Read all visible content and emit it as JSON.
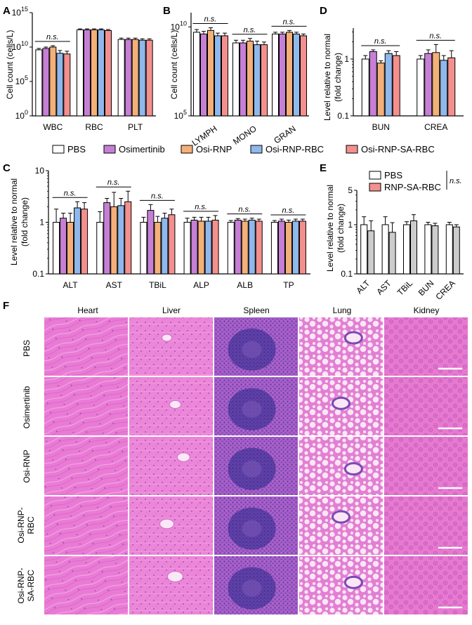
{
  "figure": {
    "panel_labels": [
      "A",
      "B",
      "C",
      "D",
      "E",
      "F"
    ],
    "legend_main": [
      "PBS",
      "Osimertinib",
      "Osi-RNP",
      "Osi-RNP-RBC",
      "Osi-RNP-SA-RBC"
    ],
    "legend_e": [
      "PBS",
      "RNP-SA-RBC"
    ],
    "colors": {
      "PBS": "#ffffff",
      "Osimertinib": "#c77fd6",
      "Osi-RNP": "#f4b079",
      "Osi-RNP-RBC": "#8fb8ec",
      "Osi-RNP-SA-RBC": "#f3908e"
    },
    "ns_label": "n.s."
  },
  "chart_data": [
    {
      "id": "A",
      "type": "bar",
      "scale": "log",
      "title": "",
      "xlabel": "",
      "ylabel": "Cell count (cells/L)",
      "yticks": [
        "10^0",
        "10^5",
        "10^10",
        "10^15"
      ],
      "ylim_exp": [
        0,
        15
      ],
      "categories": [
        "WBC",
        "RBC",
        "PLT"
      ],
      "series": [
        {
          "name": "PBS",
          "values_exp": [
            9.6,
            12.5,
            11.1
          ],
          "err": [
            0.2,
            0.15,
            0.2
          ]
        },
        {
          "name": "Osimertinib",
          "values_exp": [
            9.8,
            12.5,
            11.1
          ],
          "err": [
            0.2,
            0.15,
            0.2
          ]
        },
        {
          "name": "Osi-RNP",
          "values_exp": [
            10.0,
            12.5,
            11.1
          ],
          "err": [
            0.2,
            0.15,
            0.2
          ]
        },
        {
          "name": "Osi-RNP-RBC",
          "values_exp": [
            9.1,
            12.5,
            11.0
          ],
          "err": [
            0.4,
            0.15,
            0.2
          ]
        },
        {
          "name": "Osi-RNP-SA-RBC",
          "values_exp": [
            9.0,
            12.4,
            11.0
          ],
          "err": [
            0.4,
            0.15,
            0.2
          ]
        }
      ],
      "ns": [
        {
          "label": "n.s.",
          "from": 0,
          "to": 0
        }
      ]
    },
    {
      "id": "B",
      "type": "bar",
      "scale": "log",
      "title": "",
      "xlabel": "",
      "ylabel": "Cell count (cells/L)",
      "yticks": [
        "10^5",
        "10^10"
      ],
      "ylim_exp": [
        5,
        10.8
      ],
      "categories": [
        "LYMPH",
        "MONO",
        "GRAN"
      ],
      "series": [
        {
          "name": "PBS",
          "values_exp": [
            9.7,
            9.1,
            9.6
          ],
          "err": [
            0.15,
            0.15,
            0.1
          ]
        },
        {
          "name": "Osimertinib",
          "values_exp": [
            9.6,
            9.1,
            9.6
          ],
          "err": [
            0.15,
            0.15,
            0.1
          ]
        },
        {
          "name": "Osi-RNP",
          "values_exp": [
            9.8,
            9.2,
            9.7
          ],
          "err": [
            0.15,
            0.15,
            0.1
          ]
        },
        {
          "name": "Osi-RNP-RBC",
          "values_exp": [
            9.5,
            9.0,
            9.6
          ],
          "err": [
            0.15,
            0.2,
            0.1
          ]
        },
        {
          "name": "Osi-RNP-SA-RBC",
          "values_exp": [
            9.5,
            9.0,
            9.5
          ],
          "err": [
            0.15,
            0.15,
            0.1
          ]
        }
      ],
      "ns": [
        {
          "label": "n.s.",
          "from": 0,
          "to": 0
        },
        {
          "label": "n.s.",
          "from": 1,
          "to": 1
        },
        {
          "label": "n.s.",
          "from": 2,
          "to": 2
        }
      ]
    },
    {
      "id": "D",
      "type": "bar",
      "scale": "log",
      "title": "",
      "xlabel": "",
      "ylabel": "Level relative to normal (fold change)",
      "yticks": [
        "0.1",
        "1"
      ],
      "ylim": [
        0.1,
        3.5
      ],
      "categories": [
        "BUN",
        "CREA"
      ],
      "series": [
        {
          "name": "PBS",
          "values": [
            1.0,
            1.0
          ],
          "err": [
            0.15,
            0.15
          ]
        },
        {
          "name": "Osimertinib",
          "values": [
            1.35,
            1.25
          ],
          "err": [
            0.1,
            0.2
          ]
        },
        {
          "name": "Osi-RNP",
          "values": [
            0.85,
            1.3
          ],
          "err": [
            0.08,
            0.5
          ]
        },
        {
          "name": "Osi-RNP-RBC",
          "values": [
            1.25,
            0.95
          ],
          "err": [
            0.15,
            0.2
          ]
        },
        {
          "name": "Osi-RNP-SA-RBC",
          "values": [
            1.15,
            1.05
          ],
          "err": [
            0.2,
            0.35
          ]
        }
      ],
      "ns": [
        {
          "label": "n.s.",
          "from": 0,
          "to": 0
        },
        {
          "label": "n.s.",
          "from": 1,
          "to": 1
        }
      ]
    },
    {
      "id": "C",
      "type": "bar",
      "scale": "log",
      "title": "",
      "xlabel": "",
      "ylabel": "Level relative to normal (fold change)",
      "yticks": [
        "0.1",
        "1",
        "10"
      ],
      "ylim": [
        0.1,
        10
      ],
      "categories": [
        "ALT",
        "AST",
        "TBiL",
        "ALP",
        "ALB",
        "TP"
      ],
      "series": [
        {
          "name": "PBS",
          "values": [
            1.0,
            1.0,
            1.0,
            1.0,
            1.0,
            1.0
          ],
          "err": [
            0.8,
            0.6,
            0.25,
            0.2,
            0.08,
            0.08
          ]
        },
        {
          "name": "Osimertinib",
          "values": [
            1.2,
            2.4,
            1.7,
            1.1,
            1.1,
            1.05
          ],
          "err": [
            0.3,
            0.5,
            0.5,
            0.15,
            0.08,
            0.1
          ]
        },
        {
          "name": "Osi-RNP",
          "values": [
            1.0,
            2.0,
            1.0,
            1.05,
            1.05,
            1.0
          ],
          "err": [
            0.5,
            1.8,
            0.3,
            0.2,
            0.1,
            0.1
          ]
        },
        {
          "name": "Osi-RNP-RBC",
          "values": [
            1.9,
            2.1,
            1.2,
            1.05,
            1.1,
            1.05
          ],
          "err": [
            0.6,
            0.8,
            0.3,
            0.2,
            0.1,
            0.1
          ]
        },
        {
          "name": "Osi-RNP-SA-RBC",
          "values": [
            1.8,
            2.5,
            1.4,
            1.1,
            1.05,
            1.05
          ],
          "err": [
            0.6,
            1.5,
            0.4,
            0.25,
            0.1,
            0.1
          ]
        }
      ],
      "ns": [
        {
          "label": "n.s.",
          "from": 0,
          "to": 0
        },
        {
          "label": "n.s.",
          "from": 1,
          "to": 1
        },
        {
          "label": "n.s.",
          "from": 2,
          "to": 2
        },
        {
          "label": "n.s.",
          "from": 3,
          "to": 3
        },
        {
          "label": "n.s.",
          "from": 4,
          "to": 4
        },
        {
          "label": "n.s.",
          "from": 5,
          "to": 5
        }
      ]
    },
    {
      "id": "E",
      "type": "bar",
      "scale": "log",
      "title": "",
      "xlabel": "",
      "ylabel": "Level relative to normal (fold change)",
      "yticks": [
        "0.1",
        "1",
        "5"
      ],
      "ylim": [
        0.1,
        5
      ],
      "categories": [
        "ALT",
        "AST",
        "TBiL",
        "BUN",
        "CREA"
      ],
      "series": [
        {
          "name": "PBS",
          "values": [
            1.0,
            1.0,
            1.0,
            1.0,
            1.0
          ],
          "err": [
            0.45,
            0.45,
            0.15,
            0.12,
            0.12
          ]
        },
        {
          "name": "RNP-SA-RBC",
          "values": [
            0.75,
            0.7,
            1.2,
            0.95,
            0.9
          ],
          "err": [
            0.45,
            0.4,
            0.4,
            0.12,
            0.1
          ]
        }
      ],
      "ns": []
    }
  ],
  "histology": {
    "columns": [
      "Heart",
      "Liver",
      "Spleen",
      "Lung",
      "Kidney"
    ],
    "rows": [
      "PBS",
      "Osimertinib",
      "Osi-RNP",
      "Osi-RNP-\nRBC",
      "Osi-RNP-\nSA-RBC"
    ]
  }
}
